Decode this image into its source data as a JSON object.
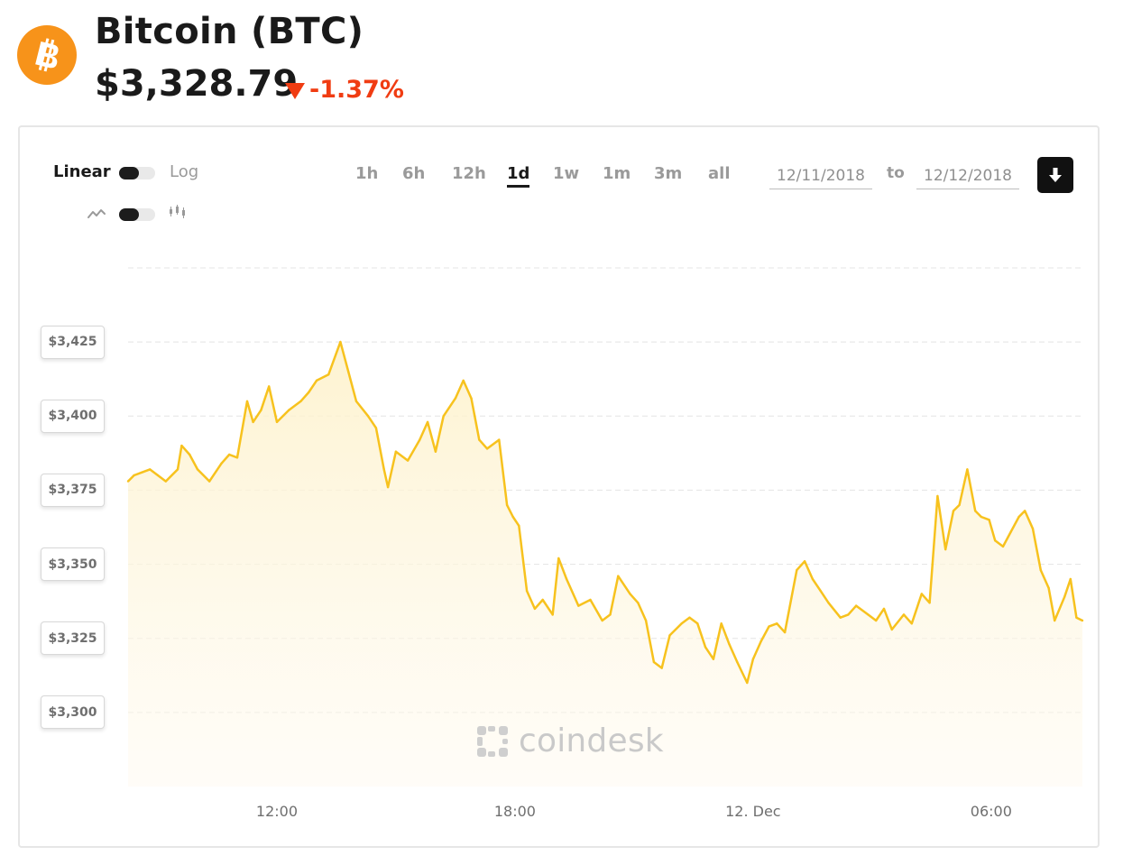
{
  "coin": {
    "title": "Bitcoin (BTC)",
    "price": "$3,328.79",
    "change": "-1.37%",
    "logo_symbol": "bitcoin-icon"
  },
  "colors": {
    "bitcoin_orange": "#f7931a",
    "negative_red": "#f03c12",
    "line_gold": "#f7c21e"
  },
  "controls": {
    "scale_left": "Linear",
    "scale_right": "Log",
    "type_left_icon": "line-chart-icon",
    "type_right_icon": "candlestick-icon",
    "ranges": [
      "1h",
      "6h",
      "12h",
      "1d",
      "1w",
      "1m",
      "3m",
      "all"
    ],
    "active_range": "1d",
    "date_from": "12/11/2018",
    "to_label": "to",
    "date_to": "12/12/2018",
    "download_icon": "download-icon"
  },
  "watermark": "coindesk",
  "chart_data": {
    "type": "area",
    "title": "",
    "xlabel": "",
    "ylabel": "",
    "y_tick_labels": [
      "$3,425",
      "$3,400",
      "$3,375",
      "$3,350",
      "$3,325",
      "$3,300"
    ],
    "y_ticks": [
      3425,
      3400,
      3375,
      3350,
      3325,
      3300
    ],
    "x_tick_labels": [
      "12:00",
      "18:00",
      "12. Dec",
      "06:00"
    ],
    "x_ticks_hours": [
      12,
      18,
      24,
      30
    ],
    "x_range_hours": [
      8.25,
      32.3
    ],
    "ylim": [
      3275,
      3450
    ],
    "grid": true,
    "series": [
      {
        "x_hours": [
          8.25,
          8.4,
          8.6,
          8.8,
          9.0,
          9.2,
          9.5,
          9.6,
          9.8,
          10.0,
          10.3,
          10.6,
          10.8,
          11.0,
          11.25,
          11.4,
          11.6,
          11.8,
          12.0,
          12.3,
          12.6,
          12.8,
          13.0,
          13.3,
          13.6,
          13.8,
          14.0,
          14.3,
          14.5,
          14.7,
          14.8,
          15.0,
          15.3,
          15.6,
          15.8,
          16.0,
          16.2,
          16.5,
          16.7,
          16.9,
          17.1,
          17.3,
          17.6,
          17.8,
          17.95,
          18.1,
          18.3,
          18.5,
          18.7,
          18.95,
          19.1,
          19.3,
          19.6,
          19.9,
          20.2,
          20.4,
          20.6,
          20.9,
          21.1,
          21.3,
          21.5,
          21.7,
          21.9,
          22.2,
          22.4,
          22.6,
          22.8,
          23.0,
          23.2,
          23.4,
          23.6,
          23.85,
          24.0,
          24.2,
          24.4,
          24.6,
          24.8,
          25.1,
          25.3,
          25.5,
          25.7,
          25.9,
          26.2,
          26.4,
          26.6,
          26.9,
          27.1,
          27.3,
          27.5,
          27.8,
          28.0,
          28.25,
          28.45,
          28.65,
          28.85,
          29.05,
          29.2,
          29.4,
          29.6,
          29.75,
          29.95,
          30.1,
          30.3,
          30.5,
          30.7,
          30.85,
          31.05,
          31.25,
          31.45,
          31.6,
          31.85,
          32.0,
          32.15,
          32.3
        ],
        "y": [
          3378,
          3380,
          3381,
          3382,
          3380,
          3378,
          3382,
          3390,
          3387,
          3382,
          3378,
          3384,
          3387,
          3386,
          3405,
          3398,
          3402,
          3410,
          3398,
          3402,
          3405,
          3408,
          3412,
          3414,
          3425,
          3415,
          3405,
          3400,
          3396,
          3382,
          3376,
          3388,
          3385,
          3392,
          3398,
          3388,
          3400,
          3406,
          3412,
          3406,
          3392,
          3389,
          3392,
          3370,
          3366,
          3363,
          3341,
          3335,
          3338,
          3333,
          3352,
          3345,
          3336,
          3338,
          3331,
          3333,
          3346,
          3340,
          3337,
          3331,
          3317,
          3315,
          3326,
          3330,
          3332,
          3330,
          3322,
          3318,
          3330,
          3323,
          3317,
          3310,
          3318,
          3324,
          3329,
          3330,
          3327,
          3348,
          3351,
          3345,
          3341,
          3337,
          3332,
          3333,
          3336,
          3333,
          3331,
          3335,
          3328,
          3333,
          3330,
          3340,
          3337,
          3373,
          3355,
          3368,
          3370,
          3382,
          3368,
          3366,
          3365,
          3358,
          3356,
          3361,
          3366,
          3368,
          3362,
          3348,
          3342,
          3331,
          3339,
          3345,
          3332,
          3331
        ]
      }
    ]
  }
}
